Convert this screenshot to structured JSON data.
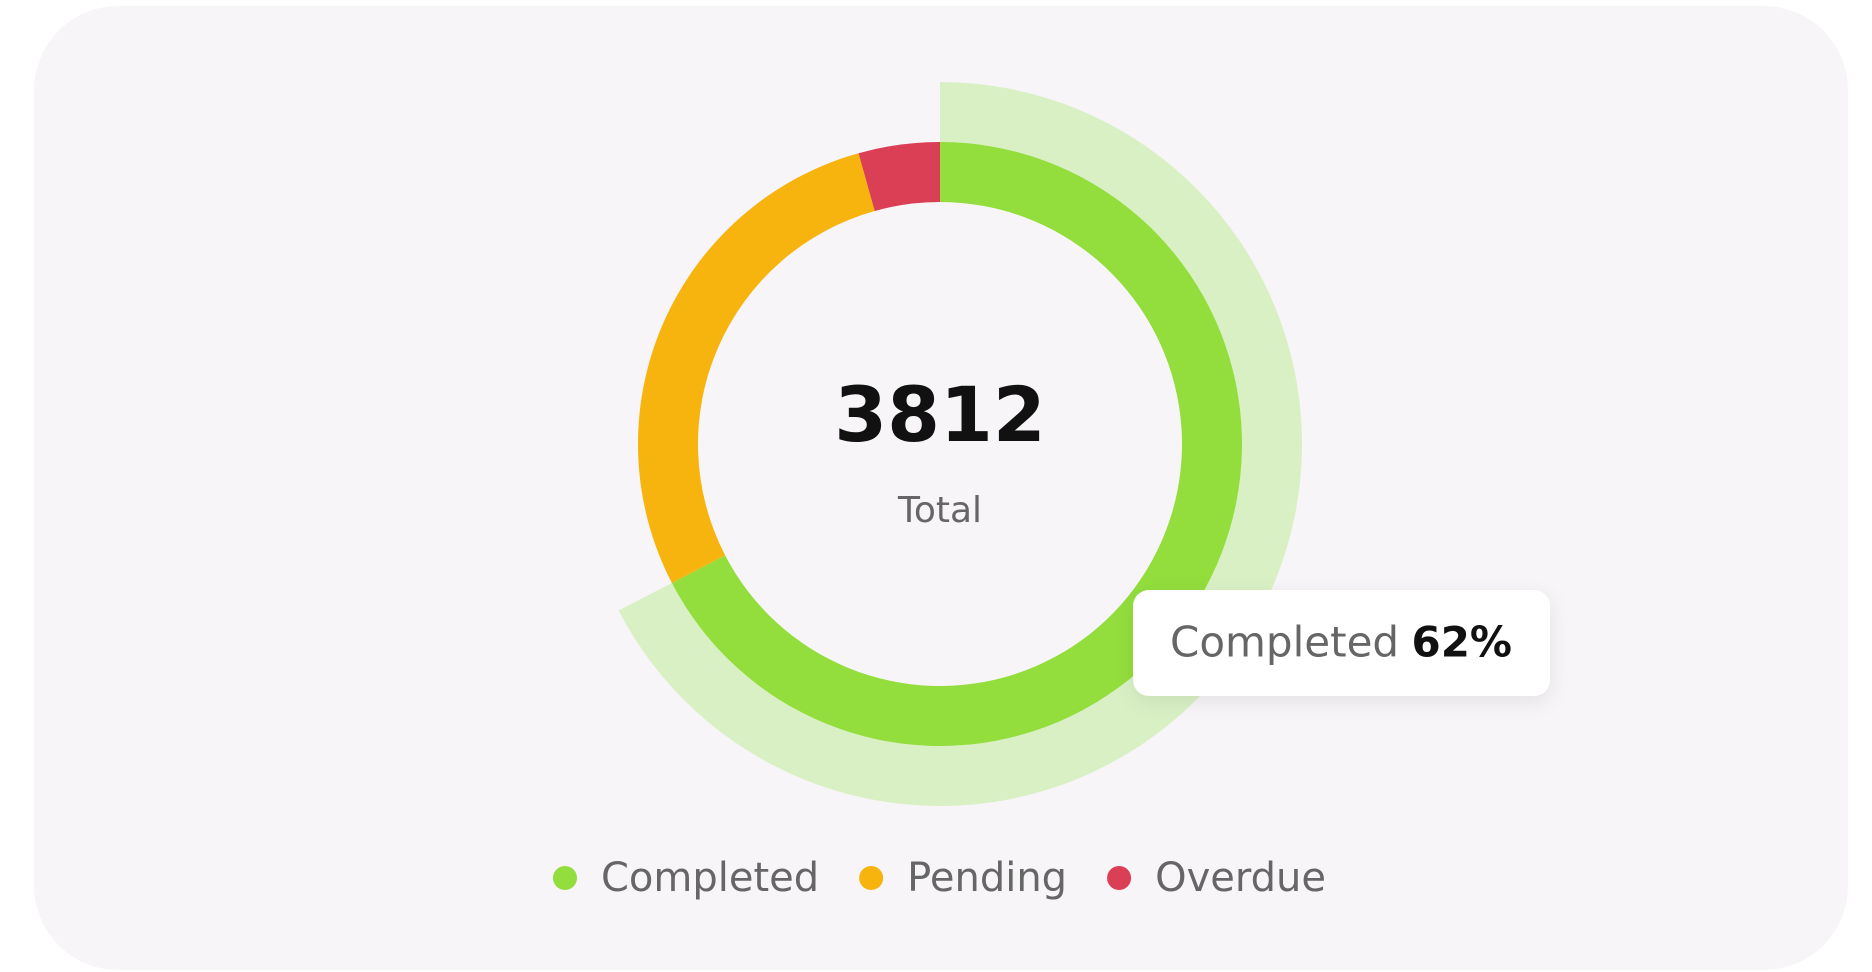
{
  "chart_data": {
    "type": "donut",
    "center_value": 3812,
    "center_label": "Total",
    "categories": [
      "Completed",
      "Pending",
      "Overdue"
    ],
    "values": [
      62,
      26,
      4
    ],
    "colors": [
      "#93dd3c",
      "#f8b40e",
      "#db3f56"
    ],
    "highlight_color": "#d9f0c4",
    "tooltip": {
      "name": "Completed",
      "value_label": "62%"
    }
  }
}
